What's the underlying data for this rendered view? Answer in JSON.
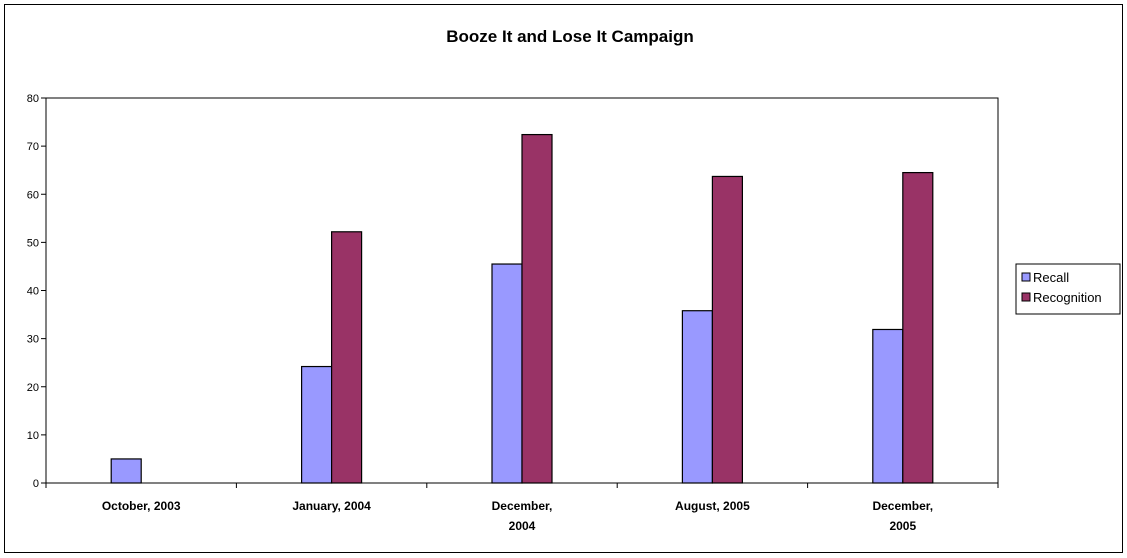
{
  "chart_data": {
    "type": "bar",
    "title": "Booze It and Lose It Campaign",
    "xlabel": "",
    "ylabel": "",
    "categories": [
      [
        "October, 2003"
      ],
      [
        "January, 2004"
      ],
      [
        "December,",
        "2004"
      ],
      [
        "August, 2005"
      ],
      [
        "December,",
        "2005"
      ]
    ],
    "series": [
      {
        "name": "Recall",
        "color": "#9999ff",
        "values": [
          5,
          24.2,
          45.5,
          35.8,
          31.9
        ]
      },
      {
        "name": "Recognition",
        "color": "#993366",
        "values": [
          null,
          52.2,
          72.4,
          63.7,
          64.5
        ]
      }
    ],
    "ylim": [
      0,
      80
    ],
    "yticks": [
      0,
      10,
      20,
      30,
      40,
      50,
      60,
      70,
      80
    ],
    "grid": false,
    "legend": "right"
  }
}
